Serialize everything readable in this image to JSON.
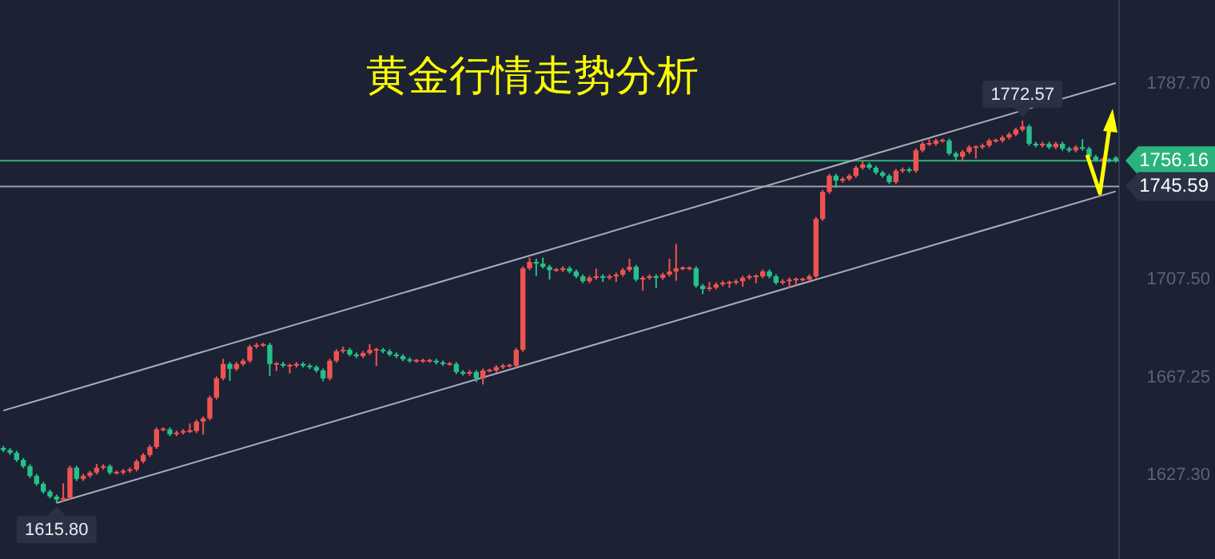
{
  "chart_data": {
    "type": "candlestick",
    "title": "黄金行情走势分析",
    "tick_labels": "y",
    "ylim": [
      1593,
      1822
    ],
    "yticks": [
      {
        "value": 1627.3,
        "label": "1627.30"
      },
      {
        "value": 1667.25,
        "label": "1667.25"
      },
      {
        "value": 1707.5,
        "label": "1707.50"
      },
      {
        "value": 1787.7,
        "label": "1787.70"
      }
    ],
    "categories": [
      null,
      null,
      null,
      null,
      null,
      null,
      null,
      null,
      null,
      null,
      null,
      null,
      null,
      null,
      null,
      null,
      null,
      null,
      null,
      null,
      null,
      null,
      null,
      null,
      null,
      null,
      null,
      null,
      null,
      null,
      null,
      null,
      null,
      null,
      null,
      null,
      null,
      null,
      null,
      null,
      null,
      null,
      null,
      null,
      null,
      null,
      null,
      null,
      null,
      null,
      null,
      null,
      null,
      null,
      null,
      null,
      null,
      null,
      null,
      null,
      null,
      null,
      null,
      null,
      null,
      null,
      null,
      null,
      null,
      null,
      null,
      null,
      null,
      null,
      null,
      null,
      null,
      null,
      null,
      null,
      null,
      null,
      null,
      null,
      null,
      null,
      null,
      null,
      null,
      null,
      null,
      null,
      null,
      null,
      null,
      null,
      null,
      null,
      null,
      null,
      null,
      null,
      null,
      null,
      null,
      null,
      null,
      null,
      null,
      null,
      null,
      null,
      null,
      null,
      null,
      null,
      null,
      null,
      null,
      null,
      null,
      null,
      null,
      null,
      null,
      null,
      null,
      null,
      null,
      null,
      null,
      null,
      null,
      null,
      null,
      null,
      null,
      null,
      null,
      null,
      null,
      null,
      null,
      null,
      null,
      null,
      null,
      null,
      null,
      null,
      null,
      null,
      null,
      null,
      null,
      null,
      null,
      null,
      null,
      null,
      null,
      null,
      null,
      null,
      null,
      null,
      null,
      null
    ],
    "ohlc": [
      [
        1638.5,
        1639.3,
        1636.8,
        1637.6
      ],
      [
        1637.6,
        1638.4,
        1635.7,
        1636.5
      ],
      [
        1636.5,
        1637.3,
        1632.8,
        1633.6
      ],
      [
        1633.6,
        1634.4,
        1630.2,
        1631.0
      ],
      [
        1631.0,
        1631.8,
        1626.2,
        1627.0
      ],
      [
        1627.0,
        1627.8,
        1623.0,
        1623.8
      ],
      [
        1623.8,
        1624.6,
        1619.8,
        1620.6
      ],
      [
        1620.6,
        1621.4,
        1617.8,
        1618.6
      ],
      [
        1618.6,
        1619.4,
        1615.8,
        1617.3
      ],
      [
        1617.3,
        1624.0,
        1616.5,
        1618.0
      ],
      [
        1618.0,
        1631.2,
        1617.2,
        1630.4
      ],
      [
        1630.4,
        1631.2,
        1625.0,
        1625.8
      ],
      [
        1625.8,
        1627.9,
        1625.0,
        1627.1
      ],
      [
        1627.1,
        1629.2,
        1626.3,
        1628.4
      ],
      [
        1628.4,
        1632.0,
        1627.6,
        1630.4
      ],
      [
        1630.4,
        1631.8,
        1629.6,
        1631.0
      ],
      [
        1631.0,
        1631.8,
        1627.6,
        1628.4
      ],
      [
        1628.4,
        1629.2,
        1627.6,
        1628.4
      ],
      [
        1628.4,
        1629.9,
        1627.6,
        1629.1
      ],
      [
        1629.1,
        1630.5,
        1628.3,
        1629.7
      ],
      [
        1629.7,
        1633.8,
        1628.9,
        1633.0
      ],
      [
        1633.0,
        1636.4,
        1632.2,
        1635.6
      ],
      [
        1635.6,
        1639.7,
        1634.8,
        1638.9
      ],
      [
        1638.9,
        1646.9,
        1638.1,
        1646.1
      ],
      [
        1646.1,
        1646.9,
        1645.3,
        1646.1
      ],
      [
        1646.1,
        1646.9,
        1643.3,
        1644.1
      ],
      [
        1644.1,
        1645.6,
        1643.3,
        1644.8
      ],
      [
        1644.8,
        1646.2,
        1644.0,
        1645.4
      ],
      [
        1645.4,
        1648.5,
        1644.6,
        1645.4
      ],
      [
        1645.4,
        1650.1,
        1644.6,
        1649.3
      ],
      [
        1649.3,
        1651.4,
        1644.0,
        1650.6
      ],
      [
        1650.6,
        1659.9,
        1649.8,
        1659.1
      ],
      [
        1659.1,
        1667.8,
        1658.3,
        1667.0
      ],
      [
        1667.0,
        1675.0,
        1666.2,
        1672.9
      ],
      [
        1672.9,
        1673.7,
        1666.0,
        1670.9
      ],
      [
        1670.9,
        1673.7,
        1670.1,
        1672.9
      ],
      [
        1672.9,
        1675.0,
        1672.1,
        1674.2
      ],
      [
        1674.2,
        1680.8,
        1673.4,
        1680.0
      ],
      [
        1680.0,
        1681.5,
        1679.2,
        1680.7
      ],
      [
        1680.7,
        1681.5,
        1679.9,
        1680.7
      ],
      [
        1680.7,
        1681.5,
        1668.0,
        1672.9
      ],
      [
        1672.9,
        1673.7,
        1670.0,
        1672.9
      ],
      [
        1672.9,
        1673.7,
        1671.4,
        1672.2
      ],
      [
        1672.2,
        1673.0,
        1669.0,
        1672.2
      ],
      [
        1672.2,
        1673.7,
        1671.4,
        1672.9
      ],
      [
        1672.9,
        1673.7,
        1671.4,
        1672.2
      ],
      [
        1672.2,
        1673.0,
        1670.8,
        1671.6
      ],
      [
        1671.6,
        1672.4,
        1669.4,
        1670.2
      ],
      [
        1670.2,
        1671.0,
        1665.8,
        1667.0
      ],
      [
        1667.0,
        1675.0,
        1666.2,
        1674.2
      ],
      [
        1674.2,
        1678.9,
        1673.4,
        1678.1
      ],
      [
        1678.1,
        1680.0,
        1677.3,
        1678.7
      ],
      [
        1678.7,
        1679.5,
        1676.0,
        1676.8
      ],
      [
        1676.8,
        1677.6,
        1675.3,
        1676.1
      ],
      [
        1676.1,
        1678.2,
        1675.3,
        1677.4
      ],
      [
        1677.4,
        1681.0,
        1676.6,
        1678.7
      ],
      [
        1678.7,
        1679.5,
        1672.0,
        1678.7
      ],
      [
        1678.7,
        1679.5,
        1677.3,
        1678.1
      ],
      [
        1678.1,
        1678.9,
        1676.0,
        1676.8
      ],
      [
        1676.8,
        1677.6,
        1675.3,
        1676.1
      ],
      [
        1676.1,
        1676.9,
        1674.0,
        1674.8
      ],
      [
        1674.8,
        1675.6,
        1673.4,
        1674.2
      ],
      [
        1674.2,
        1675.0,
        1673.4,
        1674.2
      ],
      [
        1674.2,
        1675.0,
        1673.4,
        1674.2
      ],
      [
        1674.2,
        1675.0,
        1673.4,
        1674.2
      ],
      [
        1674.2,
        1675.0,
        1672.7,
        1673.5
      ],
      [
        1673.5,
        1674.3,
        1672.1,
        1672.9
      ],
      [
        1672.9,
        1673.7,
        1672.1,
        1672.9
      ],
      [
        1672.9,
        1673.7,
        1668.8,
        1669.6
      ],
      [
        1669.6,
        1670.4,
        1668.1,
        1668.9
      ],
      [
        1668.9,
        1670.4,
        1668.1,
        1669.6
      ],
      [
        1669.6,
        1670.4,
        1665.5,
        1667.0
      ],
      [
        1667.0,
        1671.0,
        1664.5,
        1670.2
      ],
      [
        1670.2,
        1671.0,
        1669.4,
        1670.2
      ],
      [
        1670.2,
        1672.4,
        1669.4,
        1671.6
      ],
      [
        1671.6,
        1673.0,
        1670.8,
        1672.2
      ],
      [
        1672.2,
        1673.0,
        1671.4,
        1672.2
      ],
      [
        1672.2,
        1679.5,
        1671.4,
        1678.7
      ],
      [
        1678.7,
        1712.9,
        1677.9,
        1712.1
      ],
      [
        1712.1,
        1716.5,
        1711.3,
        1714.7
      ],
      [
        1714.7,
        1716.0,
        1709.0,
        1714.0
      ],
      [
        1714.0,
        1716.5,
        1712.0,
        1712.7
      ],
      [
        1712.7,
        1713.5,
        1707.5,
        1711.4
      ],
      [
        1711.4,
        1712.2,
        1710.6,
        1711.4
      ],
      [
        1711.4,
        1712.9,
        1710.6,
        1712.1
      ],
      [
        1712.1,
        1712.9,
        1710.0,
        1710.8
      ],
      [
        1710.8,
        1711.6,
        1708.0,
        1708.8
      ],
      [
        1708.8,
        1709.6,
        1706.0,
        1706.8
      ],
      [
        1706.8,
        1709.0,
        1706.0,
        1708.2
      ],
      [
        1708.2,
        1712.0,
        1707.4,
        1708.8
      ],
      [
        1708.8,
        1709.6,
        1706.5,
        1708.2
      ],
      [
        1708.2,
        1709.6,
        1707.4,
        1708.8
      ],
      [
        1708.8,
        1710.3,
        1706.5,
        1709.5
      ],
      [
        1709.5,
        1712.2,
        1708.7,
        1711.4
      ],
      [
        1711.4,
        1716.0,
        1710.6,
        1712.7
      ],
      [
        1712.7,
        1713.5,
        1706.7,
        1707.5
      ],
      [
        1707.5,
        1709.0,
        1703.0,
        1708.2
      ],
      [
        1708.2,
        1709.6,
        1707.4,
        1708.8
      ],
      [
        1708.8,
        1709.6,
        1704.0,
        1708.2
      ],
      [
        1708.2,
        1710.3,
        1707.4,
        1709.5
      ],
      [
        1709.5,
        1716.0,
        1708.7,
        1710.8
      ],
      [
        1710.8,
        1722.0,
        1707.0,
        1712.1
      ],
      [
        1712.1,
        1712.9,
        1711.3,
        1712.1
      ],
      [
        1712.1,
        1712.9,
        1711.3,
        1712.1
      ],
      [
        1712.1,
        1712.9,
        1704.1,
        1704.9
      ],
      [
        1704.9,
        1705.7,
        1701.5,
        1703.6
      ],
      [
        1703.6,
        1706.5,
        1702.8,
        1704.2
      ],
      [
        1704.2,
        1706.3,
        1703.4,
        1705.5
      ],
      [
        1705.5,
        1707.0,
        1704.7,
        1706.2
      ],
      [
        1706.2,
        1707.0,
        1704.0,
        1706.2
      ],
      [
        1706.2,
        1707.6,
        1705.4,
        1706.8
      ],
      [
        1706.8,
        1709.0,
        1704.5,
        1708.2
      ],
      [
        1708.2,
        1709.6,
        1707.4,
        1708.8
      ],
      [
        1708.8,
        1709.6,
        1706.0,
        1708.8
      ],
      [
        1708.8,
        1711.6,
        1708.0,
        1710.8
      ],
      [
        1710.8,
        1711.6,
        1708.0,
        1708.8
      ],
      [
        1708.8,
        1709.6,
        1705.4,
        1706.2
      ],
      [
        1706.2,
        1707.6,
        1705.4,
        1706.8
      ],
      [
        1706.8,
        1708.3,
        1704.0,
        1707.5
      ],
      [
        1707.5,
        1708.3,
        1705.0,
        1707.5
      ],
      [
        1707.5,
        1708.3,
        1706.7,
        1707.5
      ],
      [
        1707.5,
        1709.6,
        1706.7,
        1708.8
      ],
      [
        1708.8,
        1733.1,
        1708.0,
        1732.3
      ],
      [
        1732.3,
        1744.2,
        1731.5,
        1743.4
      ],
      [
        1743.4,
        1750.8,
        1742.6,
        1750.0
      ],
      [
        1750.0,
        1750.8,
        1745.0,
        1748.0
      ],
      [
        1748.0,
        1749.5,
        1747.2,
        1748.7
      ],
      [
        1748.7,
        1750.8,
        1747.9,
        1750.0
      ],
      [
        1750.0,
        1754.1,
        1749.2,
        1753.3
      ],
      [
        1753.3,
        1756.0,
        1752.5,
        1754.6
      ],
      [
        1754.6,
        1755.4,
        1752.5,
        1753.3
      ],
      [
        1753.3,
        1754.1,
        1750.5,
        1751.3
      ],
      [
        1751.3,
        1752.1,
        1749.2,
        1750.0
      ],
      [
        1750.0,
        1750.8,
        1746.6,
        1747.4
      ],
      [
        1747.4,
        1752.8,
        1746.6,
        1752.0
      ],
      [
        1752.0,
        1753.4,
        1751.2,
        1752.6
      ],
      [
        1752.6,
        1753.4,
        1751.2,
        1752.0
      ],
      [
        1752.0,
        1761.2,
        1751.2,
        1760.4
      ],
      [
        1760.4,
        1763.9,
        1759.6,
        1763.1
      ],
      [
        1763.1,
        1765.0,
        1762.3,
        1763.1
      ],
      [
        1763.1,
        1765.2,
        1762.3,
        1764.4
      ],
      [
        1764.4,
        1765.2,
        1763.6,
        1764.4
      ],
      [
        1764.4,
        1765.2,
        1758.3,
        1759.1
      ],
      [
        1759.1,
        1759.9,
        1756.0,
        1757.8
      ],
      [
        1757.8,
        1760.6,
        1756.0,
        1759.8
      ],
      [
        1759.8,
        1762.5,
        1759.0,
        1761.7
      ],
      [
        1761.7,
        1762.5,
        1757.0,
        1761.7
      ],
      [
        1761.7,
        1763.2,
        1760.9,
        1762.4
      ],
      [
        1762.4,
        1765.2,
        1761.6,
        1764.4
      ],
      [
        1764.4,
        1765.2,
        1763.6,
        1764.4
      ],
      [
        1764.4,
        1766.5,
        1763.6,
        1765.7
      ],
      [
        1765.7,
        1767.8,
        1764.9,
        1767.0
      ],
      [
        1767.0,
        1769.7,
        1766.2,
        1768.9
      ],
      [
        1768.9,
        1772.57,
        1768.1,
        1770.2
      ],
      [
        1770.2,
        1771.0,
        1762.3,
        1763.1
      ],
      [
        1763.1,
        1763.9,
        1761.6,
        1762.4
      ],
      [
        1762.4,
        1763.9,
        1761.6,
        1763.1
      ],
      [
        1763.1,
        1763.9,
        1760.9,
        1761.7
      ],
      [
        1761.7,
        1763.9,
        1760.9,
        1763.1
      ],
      [
        1763.1,
        1763.9,
        1760.3,
        1761.1
      ],
      [
        1761.1,
        1761.9,
        1759.6,
        1760.4
      ],
      [
        1760.4,
        1762.5,
        1759.6,
        1761.7
      ],
      [
        1761.7,
        1765.0,
        1760.3,
        1761.1
      ],
      [
        1761.1,
        1761.9,
        1757.0,
        1757.8
      ],
      [
        1757.8,
        1758.6,
        1755.7,
        1756.5
      ],
      [
        1756.5,
        1757.3,
        1755.7,
        1756.5
      ],
      [
        1756.5,
        1757.3,
        1755.4,
        1756.2
      ],
      [
        1757.4,
        1758.0,
        1755.4,
        1756.16
      ]
    ],
    "series": [
      {
        "type": "line",
        "color": "#a9aebb",
        "values": [
          null,
          null,
          null,
          null,
          null,
          null,
          null,
          null,
          1616.0,
          null,
          null,
          null,
          null,
          null,
          null,
          null,
          null,
          null,
          null,
          null,
          null,
          null,
          null,
          null,
          null,
          null,
          null,
          null,
          null,
          null,
          null,
          null,
          null,
          null,
          null,
          null,
          null,
          null,
          null,
          null,
          null,
          null,
          null,
          null,
          null,
          null,
          null,
          null,
          null,
          null,
          null,
          null,
          null,
          null,
          null,
          null,
          null,
          null,
          null,
          null,
          null,
          null,
          null,
          null,
          null,
          null,
          null,
          null,
          null,
          null,
          null,
          null,
          null,
          null,
          null,
          null,
          null,
          null,
          null,
          null,
          null,
          null,
          null,
          null,
          null,
          null,
          null,
          null,
          null,
          null,
          null,
          null,
          null,
          null,
          null,
          null,
          null,
          null,
          null,
          null,
          null,
          null,
          null,
          null,
          null,
          null,
          null,
          null,
          null,
          null,
          null,
          null,
          null,
          null,
          null,
          null,
          null,
          null,
          null,
          null,
          null,
          null,
          null,
          null,
          null,
          null,
          null,
          null,
          null,
          null,
          null,
          null,
          null,
          null,
          null,
          null,
          null,
          null,
          null,
          null,
          null,
          null,
          null,
          null,
          null,
          null,
          null,
          null,
          null,
          null,
          null,
          null,
          null,
          null,
          null,
          null,
          null,
          null,
          null,
          null,
          null,
          null,
          null,
          null,
          null,
          null,
          null,
          1743.6
        ]
      },
      {
        "type": "line",
        "color": "#a9aebb",
        "values": [
          1653.8,
          null,
          null,
          null,
          null,
          null,
          null,
          null,
          null,
          null,
          null,
          null,
          null,
          null,
          null,
          null,
          null,
          null,
          null,
          null,
          null,
          null,
          null,
          null,
          null,
          null,
          null,
          null,
          null,
          null,
          null,
          null,
          null,
          null,
          null,
          null,
          null,
          null,
          null,
          null,
          null,
          null,
          null,
          null,
          null,
          null,
          null,
          null,
          null,
          null,
          null,
          null,
          null,
          null,
          null,
          null,
          null,
          null,
          null,
          null,
          null,
          null,
          null,
          null,
          null,
          null,
          null,
          null,
          null,
          null,
          null,
          null,
          null,
          null,
          null,
          null,
          null,
          null,
          null,
          null,
          null,
          null,
          null,
          null,
          null,
          null,
          null,
          null,
          null,
          null,
          null,
          null,
          null,
          null,
          null,
          null,
          null,
          null,
          null,
          null,
          null,
          null,
          null,
          null,
          null,
          null,
          null,
          null,
          null,
          null,
          null,
          null,
          null,
          null,
          null,
          null,
          null,
          null,
          null,
          null,
          null,
          null,
          null,
          null,
          null,
          null,
          null,
          null,
          null,
          null,
          null,
          null,
          null,
          null,
          null,
          null,
          null,
          null,
          null,
          null,
          null,
          null,
          null,
          null,
          null,
          null,
          null,
          null,
          null,
          null,
          null,
          null,
          null,
          null,
          null,
          null,
          null,
          null,
          null,
          null,
          null,
          null,
          null,
          null,
          null,
          null,
          null,
          1788.0
        ]
      }
    ],
    "ref_lines": [
      {
        "axis": "y",
        "value": 1756.16,
        "label": "1756.16",
        "color": "#2bb37e"
      },
      {
        "axis": "y",
        "value": 1745.59,
        "label": "1745.59",
        "color": "#9aa0ad"
      }
    ],
    "annotations": [
      "1772.57",
      "1615.80"
    ]
  }
}
